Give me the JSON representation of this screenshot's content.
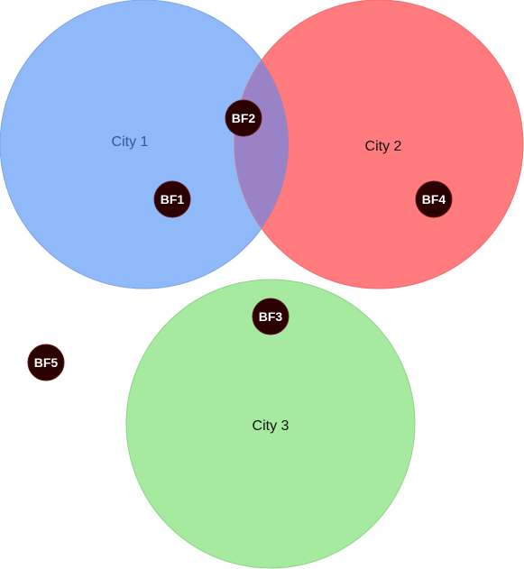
{
  "diagram": {
    "cities": [
      {
        "label": "City 1",
        "fill": "#8fb9f9",
        "stroke": "#7aa7ea",
        "label_color": "#2b5b9a"
      },
      {
        "label": "City 2",
        "fill": "#ff7b7d",
        "stroke": "#f06c6e",
        "label_color": "#111111"
      },
      {
        "label": "City 3",
        "fill": "#a6ea9f",
        "stroke": "#8fd488",
        "label_color": "#111111"
      }
    ],
    "overlap_color": "#9a82c6",
    "markers": [
      {
        "label": "BF1",
        "fill": "#2a0000",
        "stroke": "#5a1a1a"
      },
      {
        "label": "BF2",
        "fill": "#2a0000",
        "stroke": "#5a1a1a"
      },
      {
        "label": "BF3",
        "fill": "#2a0000",
        "stroke": "#5a1a1a"
      },
      {
        "label": "BF4",
        "fill": "#2a0000",
        "stroke": "#5a1a1a"
      },
      {
        "label": "BF5",
        "fill": "#2a0000",
        "stroke": "#5a1a1a"
      }
    ]
  }
}
